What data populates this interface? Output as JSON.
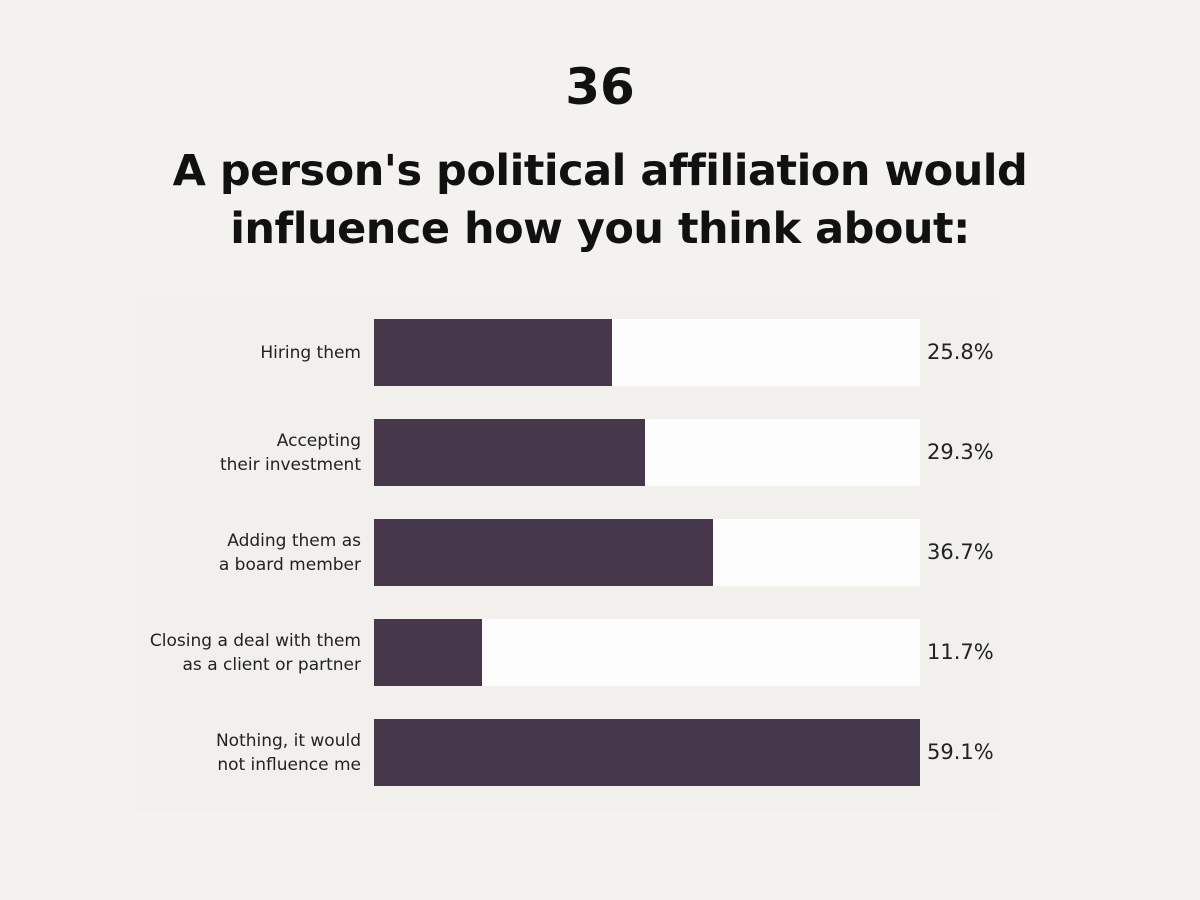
{
  "page_number": "36",
  "chart_data": {
    "type": "bar",
    "orientation": "horizontal",
    "title": "A person's political affiliation would influence how you think about:",
    "categories": [
      "Hiring them",
      "Accepting\ntheir investment",
      "Adding them as\na board member",
      "Closing a deal with them\nas a client or partner",
      "Nothing, it would\nnot influence me"
    ],
    "values": [
      25.8,
      29.3,
      36.7,
      11.7,
      59.1
    ],
    "value_labels": [
      "25.8%",
      "29.3%",
      "36.7%",
      "11.7%",
      "59.1%"
    ],
    "color": "#46374a",
    "track_color": "#fdfdfd"
  }
}
